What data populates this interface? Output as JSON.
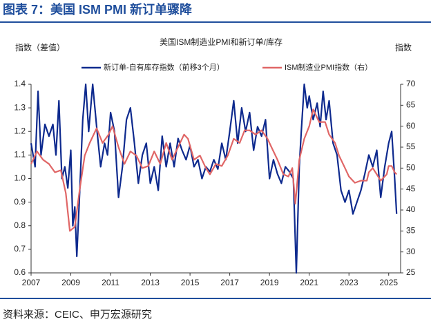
{
  "header": "图表 7：美国 ISM PMI 新订单骤降",
  "source": "资料来源：CEIC、申万宏源研究",
  "chart_data": {
    "type": "line",
    "title": "美国ISM制造业PMI和新订单/库存",
    "ylabel": "指数（差值）",
    "y2label": "指数",
    "xlim": [
      2007,
      2025.6
    ],
    "xticks": [
      2007,
      2009,
      2011,
      2013,
      2015,
      2017,
      2019,
      2021,
      2023,
      2025
    ],
    "ylim": [
      0.6,
      1.4
    ],
    "yticks": [
      0.6,
      0.7,
      0.8,
      0.9,
      {
        "value": 1.0,
        "label": "1.0"
      },
      1.1,
      1.2,
      1.3,
      1.4
    ],
    "y2lim": [
      25,
      70
    ],
    "y2ticks": [
      25,
      30,
      35,
      40,
      45,
      50,
      55,
      60,
      65,
      70
    ],
    "legend": "top",
    "series": [
      {
        "name": "新订单-自有库存指数（前移3个月）",
        "color": "#0e2a8e",
        "x": [
          2007.0,
          2007.2,
          2007.35,
          2007.5,
          2007.7,
          2007.9,
          2008.1,
          2008.25,
          2008.4,
          2008.55,
          2008.7,
          2008.85,
          2009.0,
          2009.1,
          2009.2,
          2009.3,
          2009.45,
          2009.6,
          2009.75,
          2009.9,
          2010.1,
          2010.3,
          2010.5,
          2010.7,
          2010.85,
          2011.0,
          2011.2,
          2011.4,
          2011.6,
          2011.8,
          2012.0,
          2012.2,
          2012.4,
          2012.6,
          2012.8,
          2013.0,
          2013.2,
          2013.4,
          2013.6,
          2013.8,
          2014.0,
          2014.2,
          2014.4,
          2014.6,
          2014.8,
          2015.0,
          2015.2,
          2015.4,
          2015.6,
          2015.8,
          2016.0,
          2016.2,
          2016.4,
          2016.6,
          2016.8,
          2017.0,
          2017.2,
          2017.4,
          2017.6,
          2017.8,
          2018.0,
          2018.2,
          2018.4,
          2018.6,
          2018.8,
          2019.0,
          2019.2,
          2019.4,
          2019.6,
          2019.8,
          2020.0,
          2020.2,
          2020.35,
          2020.5,
          2020.6,
          2020.75,
          2020.9,
          2021.0,
          2021.2,
          2021.4,
          2021.55,
          2021.7,
          2021.85,
          2022.0,
          2022.2,
          2022.4,
          2022.6,
          2022.8,
          2023.0,
          2023.2,
          2023.4,
          2023.6,
          2023.8,
          2024.0,
          2024.2,
          2024.4,
          2024.6,
          2024.8,
          2025.0,
          2025.15,
          2025.3,
          2025.4
        ],
        "values": [
          1.15,
          1.05,
          1.37,
          1.1,
          1.23,
          1.18,
          1.23,
          1.1,
          1.33,
          1.0,
          1.05,
          0.96,
          1.12,
          0.8,
          0.88,
          0.67,
          0.95,
          1.25,
          1.4,
          1.2,
          1.4,
          1.22,
          1.05,
          1.15,
          1.1,
          1.28,
          1.2,
          0.92,
          1.05,
          1.25,
          1.3,
          1.15,
          0.98,
          1.1,
          1.15,
          0.98,
          1.05,
          0.95,
          1.18,
          1.05,
          1.15,
          1.05,
          1.17,
          1.12,
          1.08,
          1.14,
          1.05,
          1.08,
          1.0,
          1.05,
          1.03,
          1.08,
          1.04,
          1.15,
          1.08,
          1.2,
          1.33,
          1.15,
          1.3,
          1.2,
          1.28,
          1.12,
          1.22,
          1.18,
          1.25,
          1.0,
          1.08,
          1.02,
          0.98,
          1.05,
          1.03,
          1.0,
          0.6,
          1.05,
          1.2,
          1.4,
          1.3,
          1.35,
          1.25,
          1.32,
          1.22,
          1.37,
          1.25,
          1.33,
          1.15,
          1.1,
          0.95,
          0.9,
          0.95,
          0.85,
          0.9,
          0.95,
          1.02,
          1.1,
          1.05,
          1.12,
          0.92,
          1.05,
          1.15,
          1.2,
          1.0,
          0.85
        ]
      },
      {
        "name": "ISM制造业PMI指数（右）",
        "color": "#e06666",
        "axis": "y2",
        "x": [
          2007.0,
          2007.3,
          2007.6,
          2007.9,
          2008.2,
          2008.5,
          2008.75,
          2008.95,
          2009.2,
          2009.45,
          2009.7,
          2009.95,
          2010.3,
          2010.6,
          2010.9,
          2011.1,
          2011.4,
          2011.7,
          2012.0,
          2012.3,
          2012.6,
          2012.9,
          2013.2,
          2013.5,
          2013.8,
          2014.1,
          2014.4,
          2014.7,
          2014.9,
          2015.2,
          2015.5,
          2015.8,
          2016.0,
          2016.3,
          2016.6,
          2016.9,
          2017.2,
          2017.5,
          2017.75,
          2018.0,
          2018.3,
          2018.6,
          2018.9,
          2019.1,
          2019.4,
          2019.7,
          2019.95,
          2020.15,
          2020.3,
          2020.5,
          2020.75,
          2021.0,
          2021.2,
          2021.5,
          2021.8,
          2022.0,
          2022.3,
          2022.5,
          2022.8,
          2023.0,
          2023.3,
          2023.6,
          2023.9,
          2024.0,
          2024.2,
          2024.4,
          2024.6,
          2024.9,
          2025.0,
          2025.15,
          2025.3,
          2025.4
        ],
        "values": [
          51,
          54,
          52,
          51,
          49,
          49.5,
          44,
          35,
          36,
          45,
          53,
          56,
          59.5,
          56,
          58,
          60,
          55,
          51,
          54,
          53,
          50,
          50.5,
          54,
          51,
          56,
          52,
          55,
          58,
          57,
          52,
          53,
          50,
          48.5,
          51,
          50.5,
          53,
          57,
          56,
          59,
          59,
          58,
          59,
          57,
          55,
          52,
          48.5,
          48,
          50,
          41.5,
          52,
          57,
          60,
          64,
          61,
          61,
          58,
          56,
          53,
          50,
          48,
          46.5,
          47,
          47,
          49,
          50,
          48.5,
          47,
          48.5,
          50.5,
          50.5,
          49,
          48.5
        ]
      }
    ]
  }
}
